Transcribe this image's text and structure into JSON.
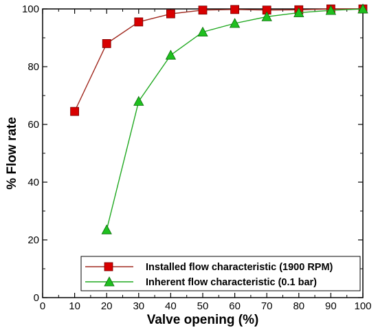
{
  "chart_data": {
    "type": "line",
    "xlabel": "Valve opening (%)",
    "ylabel": "% Flow rate",
    "xlim": [
      0,
      100
    ],
    "ylim": [
      0,
      100
    ],
    "x_ticks": [
      0,
      10,
      20,
      30,
      40,
      50,
      60,
      70,
      80,
      90,
      100
    ],
    "y_ticks": [
      0,
      20,
      40,
      60,
      80,
      100
    ],
    "grid": false,
    "legend_position": "bottom-right",
    "series": [
      {
        "name": "Installed flow characteristic (1900 RPM)",
        "marker": "square",
        "line_color": "#a0281e",
        "marker_color": "#d80000",
        "x": [
          10,
          20,
          30,
          40,
          50,
          60,
          70,
          80,
          90,
          100
        ],
        "y": [
          64.5,
          88,
          95.5,
          98.3,
          99.6,
          99.8,
          99.6,
          99.7,
          100,
          100
        ]
      },
      {
        "name": "Inherent flow characteristic (0.1 bar)",
        "marker": "triangle",
        "line_color": "#1fa81f",
        "marker_color": "#1fc01f",
        "x": [
          20,
          30,
          40,
          50,
          60,
          70,
          80,
          90,
          100
        ],
        "y": [
          23.5,
          68,
          84,
          92,
          95,
          97.3,
          98.7,
          99.5,
          100
        ]
      }
    ]
  }
}
